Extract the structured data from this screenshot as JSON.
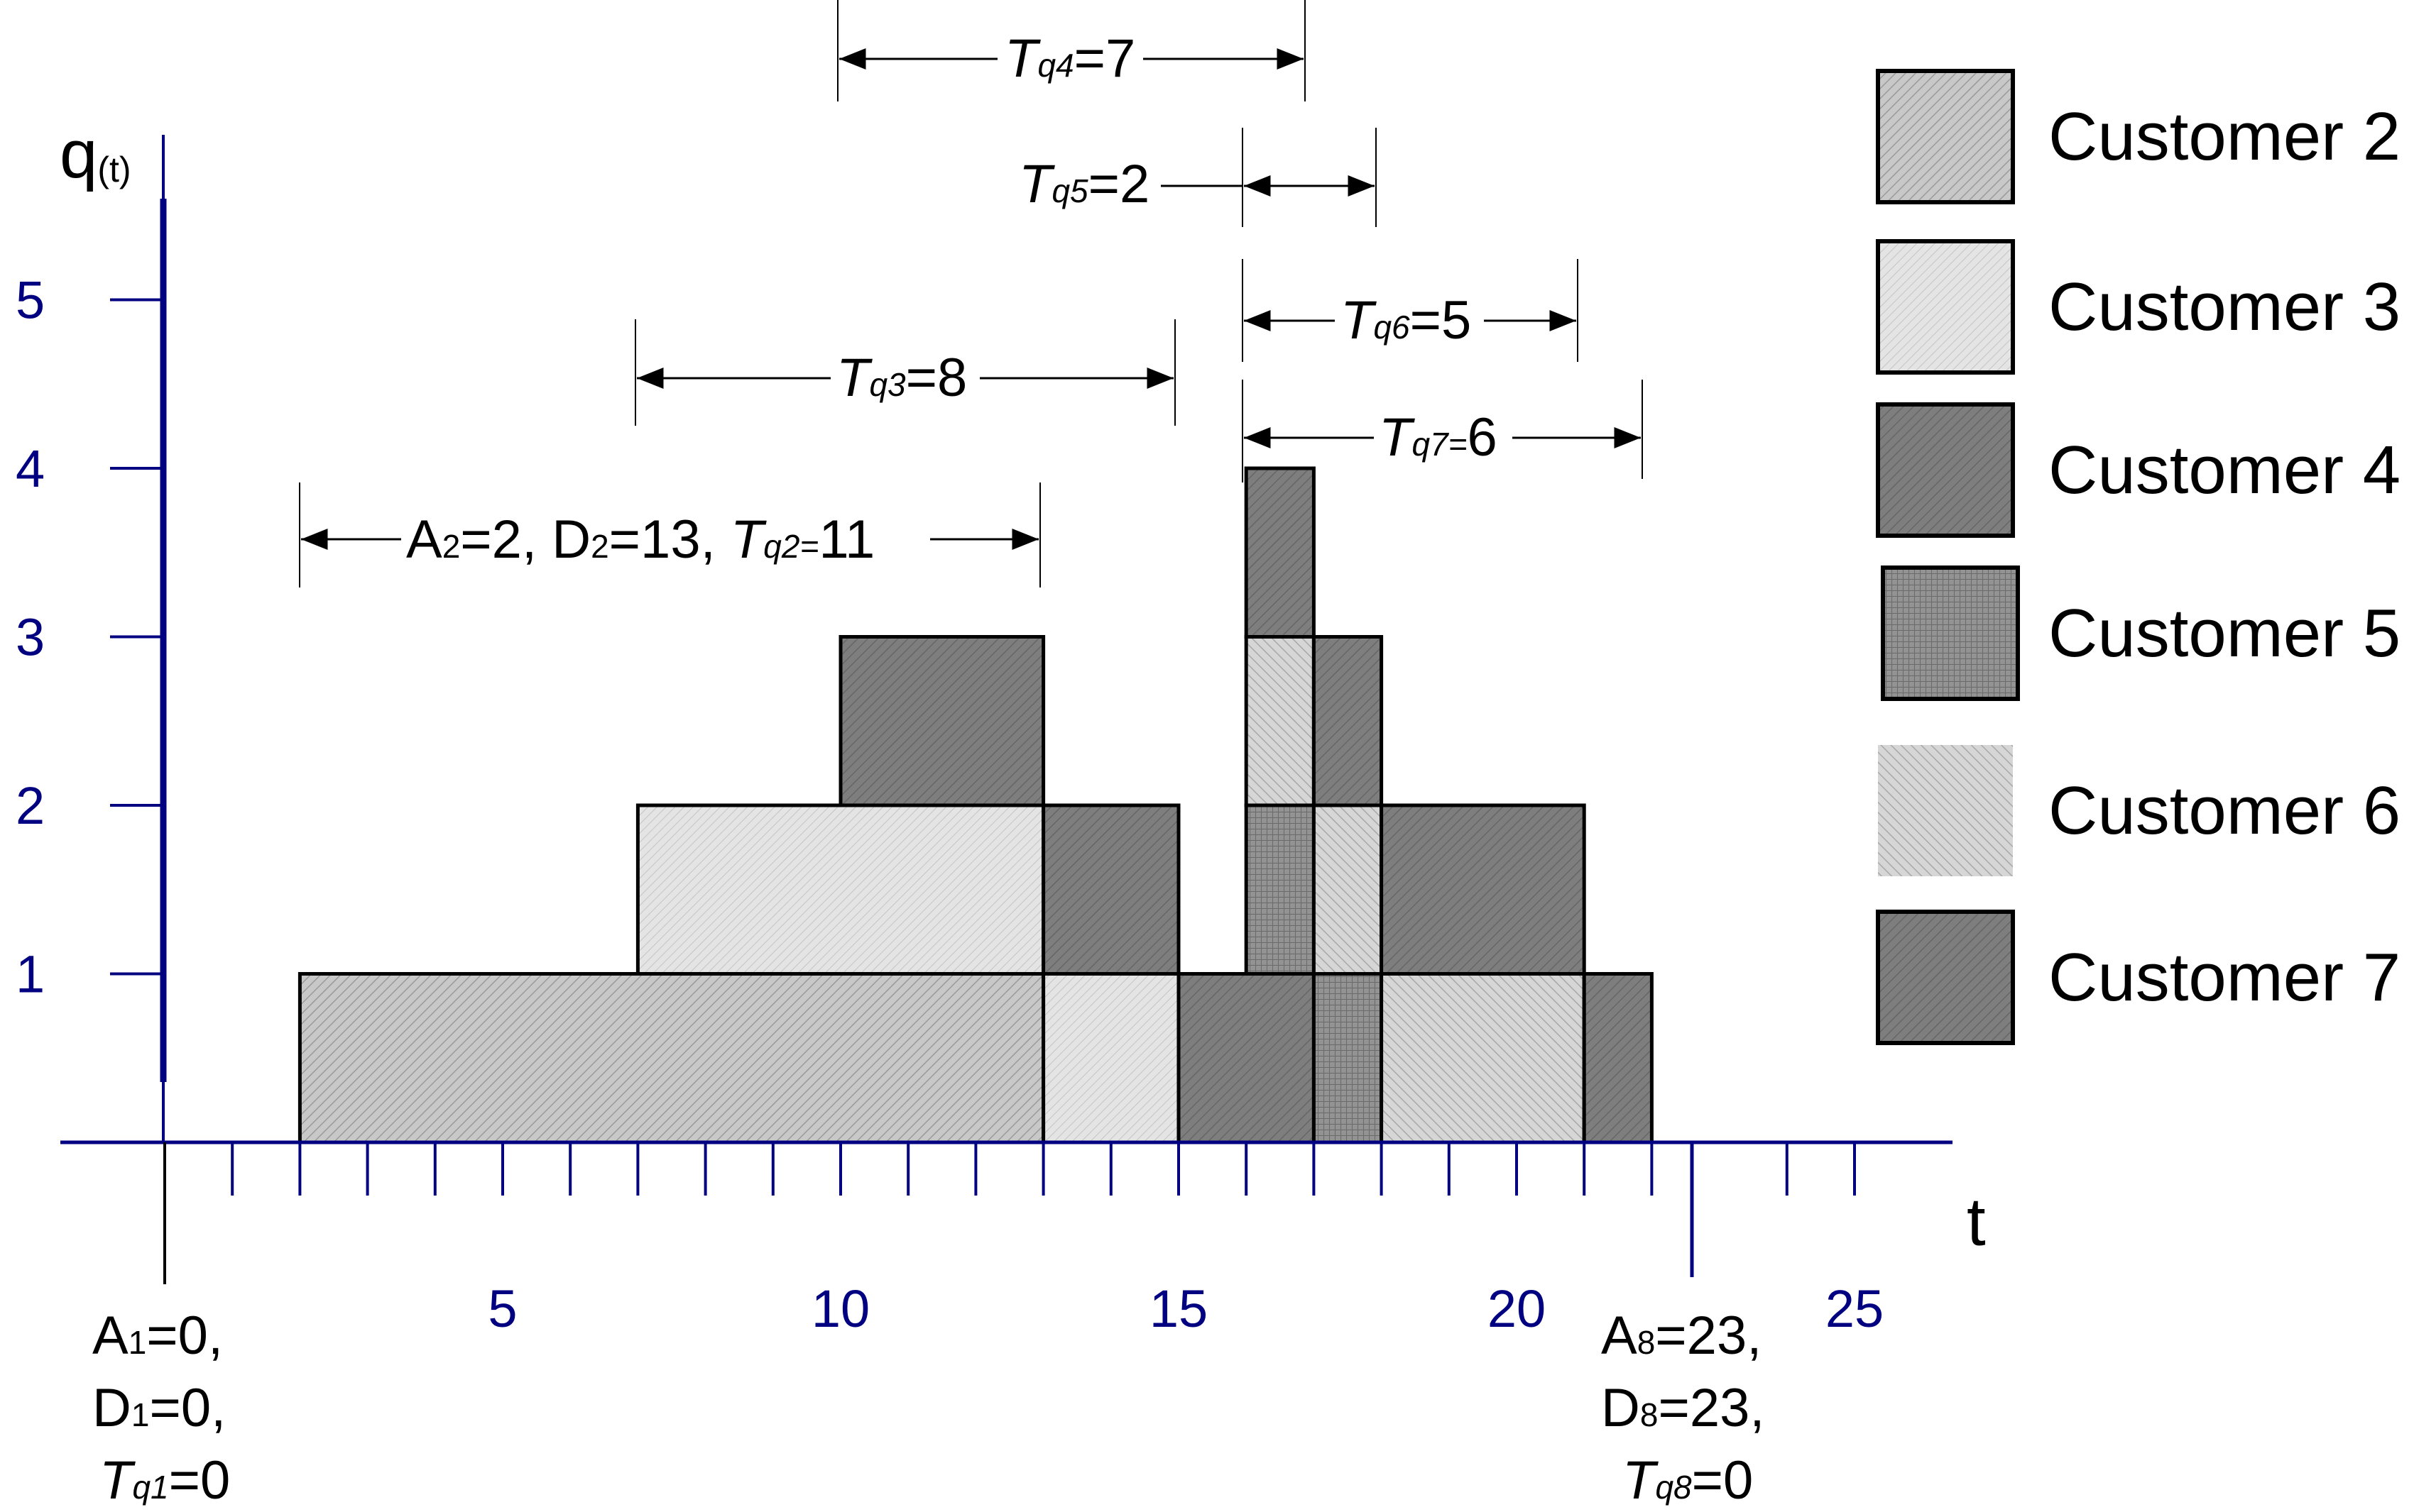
{
  "axes": {
    "y_label": "q",
    "y_label_sub": "(t)",
    "x_label": "t",
    "y_ticks": [
      "1",
      "2",
      "3",
      "4",
      "5"
    ],
    "x_tick_labels": [
      {
        "t": 5,
        "label": "5"
      },
      {
        "t": 10,
        "label": "10"
      },
      {
        "t": 15,
        "label": "15"
      },
      {
        "t": 20,
        "label": "20"
      },
      {
        "t": 25,
        "label": "25"
      }
    ]
  },
  "blocks": [
    {
      "customer": 2,
      "t_start": 2,
      "t_end": 13,
      "level": 0
    },
    {
      "customer": 3,
      "t_start": 7,
      "t_end": 13,
      "level": 1
    },
    {
      "customer": 4,
      "t_start": 10,
      "t_end": 13,
      "level": 2
    },
    {
      "customer": 3,
      "t_start": 13,
      "t_end": 15,
      "level": 0
    },
    {
      "customer": 4,
      "t_start": 13,
      "t_end": 15,
      "level": 1
    },
    {
      "customer": 4,
      "t_start": 15,
      "t_end": 17,
      "level": 0
    },
    {
      "customer": 5,
      "t_start": 16,
      "t_end": 17,
      "level": 1
    },
    {
      "customer": 6,
      "t_start": 16,
      "t_end": 17,
      "level": 2
    },
    {
      "customer": 7,
      "t_start": 16,
      "t_end": 17,
      "level": 3
    },
    {
      "customer": 5,
      "t_start": 17,
      "t_end": 18,
      "level": 0
    },
    {
      "customer": 6,
      "t_start": 17,
      "t_end": 18,
      "level": 1
    },
    {
      "customer": 7,
      "t_start": 17,
      "t_end": 18,
      "level": 2
    },
    {
      "customer": 6,
      "t_start": 18,
      "t_end": 21,
      "level": 0
    },
    {
      "customer": 7,
      "t_start": 18,
      "t_end": 21,
      "level": 1
    },
    {
      "customer": 7,
      "t_start": 21,
      "t_end": 22,
      "level": 0
    }
  ],
  "annotations": {
    "tq4": {
      "pre": "T",
      "sub": "q4",
      "post": "=7"
    },
    "tq5": {
      "pre": "T",
      "sub": "q5",
      "post": "=2"
    },
    "tq6": {
      "pre": "T",
      "sub": "q6",
      "post": "=5"
    },
    "tq3": {
      "pre": "T",
      "sub": "q3",
      "post": "=8"
    },
    "tq7": {
      "pre": "T",
      "sub": "q7=",
      "post": "6"
    },
    "c2": {
      "a": "A",
      "a_sub": "2",
      "a_val": "=2,",
      "d": "D",
      "d_sub": "2",
      "d_val": "=13,",
      "t": "T",
      "t_sub": "q2=",
      "t_val": "11"
    },
    "c1": {
      "line1_pre": "A",
      "line1_sub": "1",
      "line1_post": "=0,",
      "line2_pre": "D",
      "line2_sub": "1",
      "line2_post": "=0,",
      "line3_pre": "T",
      "line3_sub": "q1",
      "line3_post": "=0"
    },
    "c8": {
      "line1_pre": "A",
      "line1_sub": "8",
      "line1_post": "=23,",
      "line2_pre": "D",
      "line2_sub": "8",
      "line2_post": "=23,",
      "line3_pre": "T",
      "line3_sub": "q8",
      "line3_post": "=0"
    }
  },
  "legend": [
    {
      "label": "Customer 2",
      "fill": "#c8c8c8"
    },
    {
      "label": "Customer 3",
      "fill": "#e2e2e2"
    },
    {
      "label": "Customer 4",
      "fill": "#7a7a7a"
    },
    {
      "label": "Customer 5",
      "fill": "#8e8e8e"
    },
    {
      "label": "Customer 6",
      "fill": "#d4d4d4"
    },
    {
      "label": "Customer 7",
      "fill": "#7a7a7a"
    }
  ]
}
